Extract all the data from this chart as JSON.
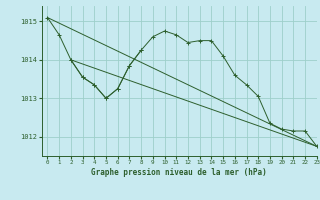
{
  "title": "Graphe pression niveau de la mer (hPa)",
  "background_color": "#c8eaf0",
  "grid_color": "#9dcfca",
  "line_color": "#2d5f2d",
  "xlim": [
    -0.5,
    23
  ],
  "ylim": [
    1011.5,
    1015.4
  ],
  "yticks": [
    1012,
    1013,
    1014,
    1015
  ],
  "xticks": [
    0,
    1,
    2,
    3,
    4,
    5,
    6,
    7,
    8,
    9,
    10,
    11,
    12,
    13,
    14,
    15,
    16,
    17,
    18,
    19,
    20,
    21,
    22,
    23
  ],
  "series1_x": [
    0,
    1,
    2,
    3,
    4,
    5,
    6,
    7,
    8,
    9,
    10,
    11,
    12,
    13,
    14,
    15,
    16,
    17,
    18,
    19,
    20,
    21,
    22,
    23
  ],
  "series1_y": [
    1015.1,
    1014.65,
    1014.0,
    1013.55,
    1013.35,
    1013.0,
    1013.25,
    1013.85,
    1014.25,
    1014.6,
    1014.75,
    1014.65,
    1014.45,
    1014.5,
    1014.5,
    1014.1,
    1013.6,
    1013.35,
    1013.05,
    1012.35,
    1012.2,
    1012.15,
    1012.15,
    1011.75
  ],
  "series2_x": [
    0,
    23
  ],
  "series2_y": [
    1015.1,
    1011.75
  ],
  "series3_x": [
    2,
    3,
    4,
    5,
    6,
    7,
    8
  ],
  "series3_y": [
    1014.0,
    1013.55,
    1013.35,
    1013.0,
    1013.25,
    1013.85,
    1014.25
  ],
  "series4_x": [
    2,
    23
  ],
  "series4_y": [
    1014.0,
    1011.75
  ]
}
